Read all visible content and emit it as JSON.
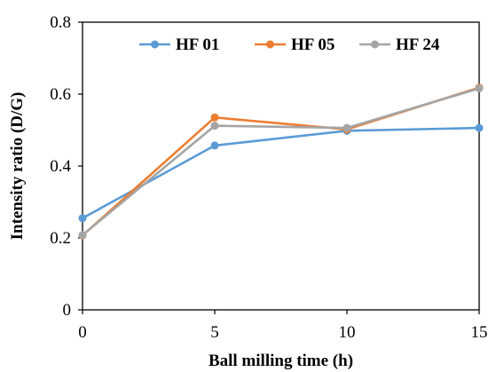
{
  "chart_data": {
    "type": "line",
    "xlabel": "Ball milling time (h)",
    "ylabel": "Intensity ratio (D/G)",
    "x": [
      0,
      5,
      10,
      15
    ],
    "xticks": [
      0,
      5,
      10,
      15
    ],
    "yticks": [
      0,
      0.2,
      0.4,
      0.6,
      0.8
    ],
    "ytick_labels": [
      "0",
      "0.2",
      "0.4",
      "0.6",
      "0.8"
    ],
    "xlim": [
      0,
      15
    ],
    "ylim": [
      0,
      0.8
    ],
    "grid": false,
    "legend_position": "top",
    "series": [
      {
        "name": "HF 01",
        "color": "#5b9bd5",
        "values": [
          0.255,
          0.457,
          0.498,
          0.506
        ]
      },
      {
        "name": "HF 05",
        "color": "#ed7d31",
        "values": [
          0.207,
          0.535,
          0.502,
          0.618
        ]
      },
      {
        "name": "HF 24",
        "color": "#a5a5a5",
        "values": [
          0.208,
          0.512,
          0.506,
          0.616
        ]
      }
    ]
  }
}
